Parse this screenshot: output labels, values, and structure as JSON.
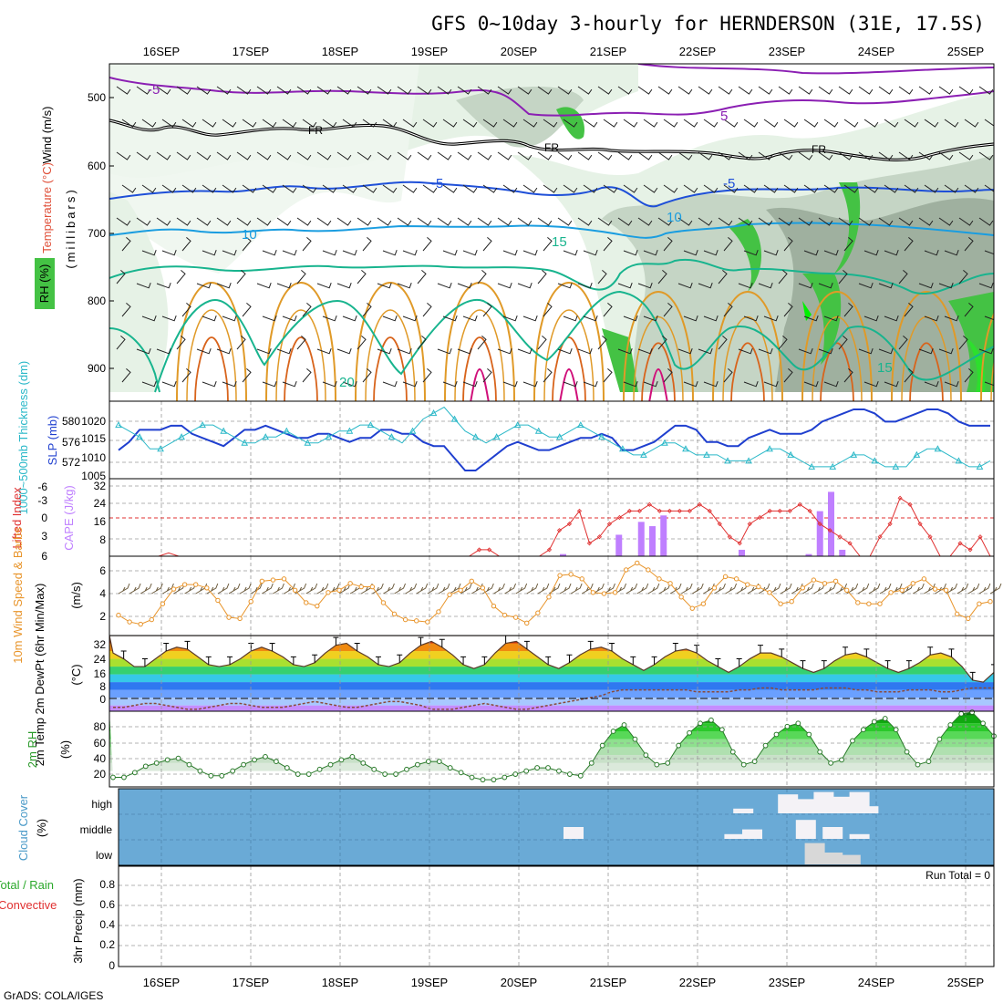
{
  "header": {
    "title": "GFS 0~10day 3-hourly for HERNDERSON (31E, 17.5S)",
    "footer": "GrADS: COLA/IGES"
  },
  "dates": [
    "16SEP",
    "17SEP",
    "18SEP",
    "19SEP",
    "20SEP",
    "21SEP",
    "22SEP",
    "23SEP",
    "24SEP",
    "25SEP"
  ],
  "colors": {
    "purple_isotherm": "#8b1fb3",
    "blue_isotherm": "#1e4fd8",
    "cyan_isotherm": "#1a9de0",
    "teal_isotherm": "#18b48e",
    "orange_isotherm": "#e09a28",
    "dark_orange_isotherm": "#d8641c",
    "magenta_isotherm": "#d0107a",
    "rh_light": "#e6f2e6",
    "rh_mid": "#c5d5c5",
    "rh_dark": "#9fb09f",
    "rh_green": "#44c244",
    "cloud_bg": "#6aaad6",
    "cape_bar": "#bf7fff",
    "lifted_line": "#e03030",
    "slp_line": "#1f3fcf",
    "thickness_line": "#2ab8c8",
    "wind_speed_line": "#e8942a",
    "rh2m_line": "#2a7a2a"
  },
  "panels": {
    "upper_air": {
      "labels": {
        "wind": "Wind (m/s)",
        "temperature": "Temperature (°C)",
        "rh": "RH (%)",
        "pressure": "(millibars)"
      },
      "ticks": [
        "500",
        "600",
        "700",
        "800",
        "900"
      ],
      "contour_labels": [
        "-5",
        "5",
        "FR",
        "FR",
        "FR",
        "-5",
        "-5",
        "10",
        "10",
        "15",
        "20",
        "15",
        "10",
        "30"
      ]
    },
    "thickness": {
      "label_left": "1000~500mb Thickness (dm)",
      "label_right": "SLP (mb)",
      "left_ticks": [
        "580",
        "576",
        "572"
      ],
      "right_ticks": [
        "1020",
        "1015",
        "1010",
        "1005"
      ]
    },
    "cape": {
      "label_left": "Lifted Index",
      "label_right": "CAPE (J/kg)",
      "left_ticks": [
        "-6",
        "-3",
        "0",
        "3",
        "6"
      ],
      "right_ticks": [
        "32",
        "24",
        "16",
        "8"
      ]
    },
    "wind10m": {
      "label_left": "10m Wind Speed & Barbs",
      "label_right": "(m/s)",
      "ticks": [
        "6",
        "4",
        "2"
      ]
    },
    "temp2m": {
      "label_left": "2m Temp 2m DewPt (6hr Min/Max)",
      "label_right": "(°C)",
      "ticks": [
        "32",
        "24",
        "16",
        "8",
        "0"
      ]
    },
    "rh2m": {
      "label_left": "2m RH",
      "label_right": "(%)",
      "ticks": [
        "80",
        "60",
        "40",
        "20"
      ]
    },
    "cloud": {
      "label_left": "Cloud Cover",
      "label_right": "(%)",
      "ticks": [
        "high",
        "middle",
        "low"
      ]
    },
    "precip": {
      "label_left_1": "Total / Rain",
      "label_left_2": "Convective",
      "label_right": "3hr Precip (mm)",
      "ticks": [
        "0.8",
        "0.6",
        "0.4",
        "0.2",
        "0"
      ],
      "run_total": "Run Total = 0"
    }
  },
  "chart_data": [
    {
      "type": "line",
      "title": "1000~500mb Thickness (dm) / SLP (mb)",
      "x_start": "15SEP 12Z",
      "x_step_hours": 3,
      "series": [
        {
          "name": "SLP (mb)",
          "axis": "right",
          "ylim": [
            1005,
            1024
          ],
          "values": [
            1012,
            1014,
            1017,
            1017,
            1017,
            1018,
            1018,
            1016,
            1015,
            1014,
            1013,
            1015,
            1017,
            1017,
            1018,
            1017,
            1016,
            1015,
            1015,
            1016,
            1016,
            1015,
            1014,
            1015,
            1015,
            1017,
            1017,
            1016,
            1016,
            1014,
            1013,
            1013,
            1010,
            1007,
            1007,
            1009,
            1011,
            1013,
            1014,
            1013,
            1012,
            1012,
            1013,
            1014,
            1015,
            1015,
            1016,
            1015,
            1012,
            1012,
            1013,
            1014,
            1016,
            1018,
            1018,
            1017,
            1014,
            1014,
            1013,
            1013,
            1015,
            1016,
            1017,
            1016,
            1016,
            1016,
            1017,
            1019,
            1020,
            1021,
            1022,
            1022,
            1021,
            1019,
            1019,
            1020,
            1021,
            1022,
            1022,
            1021,
            1019,
            1018,
            1018,
            1018
          ]
        },
        {
          "name": "1000~500mb Thickness (dm)",
          "axis": "left",
          "ylim": [
            570,
            583
          ],
          "values": [
            579,
            578,
            577,
            575,
            575,
            576,
            577,
            578,
            579,
            579,
            578,
            577,
            576,
            576,
            577,
            577,
            578,
            577,
            576,
            576,
            577,
            578,
            578,
            579,
            579,
            578,
            577,
            576,
            578,
            580,
            581,
            582,
            580,
            578,
            577,
            576,
            577,
            578,
            579,
            579,
            578,
            577,
            577,
            578,
            579,
            578,
            577,
            576,
            575,
            574,
            574,
            575,
            576,
            576,
            575,
            574,
            574,
            574,
            573,
            573,
            573,
            574,
            575,
            575,
            574,
            573,
            572,
            572,
            572,
            573,
            574,
            574,
            573,
            572,
            572,
            572,
            574,
            575,
            575,
            574,
            573,
            572,
            572,
            573
          ]
        }
      ]
    },
    {
      "type": "bar",
      "title": "Lifted Index / CAPE (J/kg)",
      "categories": [
        "20SEP 12Z",
        "21SEP 03Z",
        "21SEP 09Z",
        "21SEP 12Z",
        "21SEP 15Z",
        "22SEP 12Z",
        "23SEP 06Z",
        "23SEP 09Z",
        "23SEP 12Z",
        "23SEP 15Z"
      ],
      "values": [
        1,
        10,
        16,
        14,
        19,
        3,
        1,
        21,
        30,
        3
      ],
      "ylim": [
        0,
        34
      ],
      "lifted_index": {
        "ylim": [
          -6,
          6
        ],
        "values": [
          6,
          6,
          6,
          6,
          6,
          5.5,
          6,
          6,
          6,
          6,
          6,
          6,
          6,
          6,
          6,
          6,
          6,
          6,
          6,
          6,
          6,
          6,
          6,
          6,
          6,
          6,
          6,
          6,
          6,
          6,
          6,
          6,
          6,
          6,
          6,
          6,
          5,
          5,
          6,
          6,
          6,
          6,
          6,
          5,
          2,
          1,
          -1,
          4,
          3,
          1,
          0,
          -1,
          -1,
          -2,
          -1,
          -1,
          -1,
          -1,
          -2,
          -1,
          1,
          3,
          4,
          1,
          0,
          -1,
          -1,
          -1,
          -2,
          -1,
          1,
          2,
          3,
          4,
          6,
          6,
          3,
          1,
          -3,
          -2,
          1,
          3,
          6,
          6,
          4,
          5,
          3,
          6
        ]
      }
    },
    {
      "type": "line",
      "title": "10m Wind Speed & Barbs (m/s)",
      "ylim": [
        0,
        7
      ],
      "values": [
        1.8,
        1.2,
        1.0,
        1.4,
        2.8,
        4.1,
        4.5,
        4.5,
        4.2,
        3.1,
        1.6,
        1.5,
        3.0,
        4.8,
        4.9,
        5.0,
        4.0,
        2.9,
        2.6,
        3.8,
        4.0,
        4.6,
        4.3,
        4.3,
        2.9,
        1.9,
        1.4,
        1.3,
        1.2,
        2.1,
        3.6,
        4.0,
        4.8,
        4.2,
        2.6,
        1.8,
        1.6,
        1.1,
        2.0,
        3.4,
        5.3,
        5.4,
        5.0,
        3.8,
        3.7,
        3.8,
        5.8,
        6.4,
        5.8,
        5.0,
        4.6,
        3.4,
        2.4,
        2.8,
        4.2,
        5.2,
        5.0,
        4.5,
        4.3,
        3.8,
        2.8,
        3.0,
        4.2,
        4.9,
        4.6,
        4.8,
        4.0,
        2.9,
        2.8,
        2.8,
        3.8,
        4.0,
        4.6,
        5.0,
        4.1,
        4.0,
        1.9,
        1.5,
        2.8,
        3.0
      ]
    },
    {
      "type": "area",
      "title": "2m Temp / 2m DewPt (6hr Min/Max) (°C)",
      "ylim": [
        -3,
        36
      ],
      "series": [
        {
          "name": "2m Temp",
          "values": [
            27,
            24,
            20,
            20,
            24,
            28,
            30,
            29,
            25,
            21,
            20,
            21,
            24,
            28,
            30,
            28,
            25,
            21,
            20,
            22,
            27,
            31,
            32,
            28,
            25,
            21,
            20,
            22,
            27,
            31,
            33,
            30,
            26,
            21,
            19,
            21,
            27,
            32,
            33,
            29,
            25,
            21,
            19,
            22,
            26,
            29,
            30,
            28,
            24,
            21,
            18,
            21,
            25,
            28,
            29,
            27,
            23,
            20,
            17,
            20,
            24,
            27,
            27,
            25,
            22,
            19,
            17,
            19,
            23,
            26,
            27,
            25,
            22,
            19,
            17,
            19,
            22,
            26,
            27,
            25,
            20,
            13,
            12,
            17
          ]
        },
        {
          "name": "2m DewPt",
          "values": [
            -1,
            -1,
            0,
            1,
            1,
            0,
            -1,
            -2,
            -2,
            -1,
            0,
            1,
            1,
            0,
            -1,
            -1,
            -1,
            0,
            1,
            2,
            1,
            0,
            -1,
            -1,
            0,
            1,
            2,
            2,
            1,
            0,
            -2,
            -2,
            -2,
            -1,
            0,
            1,
            0,
            -1,
            -2,
            -2,
            -1,
            0,
            1,
            2,
            3,
            4,
            5,
            7,
            8,
            8,
            8,
            8,
            8,
            8,
            8,
            7,
            7,
            7,
            7,
            8,
            8,
            9,
            9,
            8,
            8,
            8,
            8,
            9,
            9,
            9,
            8,
            8,
            7,
            7,
            7,
            8,
            8,
            8,
            7,
            7,
            8,
            9,
            9,
            9
          ]
        }
      ]
    },
    {
      "type": "area",
      "title": "2m RH (%)",
      "ylim": [
        0,
        100
      ],
      "values": [
        12,
        12,
        18,
        26,
        30,
        34,
        36,
        28,
        20,
        14,
        14,
        20,
        28,
        34,
        38,
        32,
        24,
        16,
        16,
        22,
        28,
        34,
        38,
        30,
        22,
        16,
        16,
        22,
        28,
        32,
        32,
        24,
        18,
        12,
        9,
        9,
        12,
        16,
        20,
        24,
        24,
        20,
        16,
        14,
        30,
        52,
        70,
        78,
        60,
        40,
        28,
        30,
        52,
        68,
        80,
        84,
        72,
        44,
        28,
        32,
        52,
        66,
        76,
        80,
        66,
        44,
        30,
        34,
        58,
        72,
        82,
        86,
        72,
        44,
        28,
        32,
        60,
        78,
        92,
        94,
        80,
        64
      ]
    },
    {
      "type": "heatmap",
      "title": "Cloud Cover (%)",
      "categories": [
        "high",
        "middle",
        "low"
      ],
      "high_cover": [
        [
          1.2,
          0.05
        ],
        [
          22.4,
          0.2
        ],
        [
          22.9,
          0.8
        ],
        [
          23.1,
          0.6
        ],
        [
          23.3,
          0.9
        ],
        [
          23.5,
          0.7
        ],
        [
          23.7,
          0.9
        ],
        [
          23.8,
          0.3
        ]
      ],
      "middle_cover": [
        [
          20.5,
          0.5
        ],
        [
          22.3,
          0.2
        ],
        [
          22.5,
          0.4
        ],
        [
          23.1,
          0.8
        ],
        [
          23.4,
          0.5
        ],
        [
          23.7,
          0.2
        ]
      ],
      "low_cover": [
        [
          23.2,
          0.9
        ],
        [
          23.4,
          0.5
        ],
        [
          23.6,
          0.4
        ]
      ]
    },
    {
      "type": "bar",
      "title": "3hr Precip (mm)",
      "ylim": [
        0,
        1.0
      ],
      "values": [],
      "run_total": 0
    }
  ]
}
